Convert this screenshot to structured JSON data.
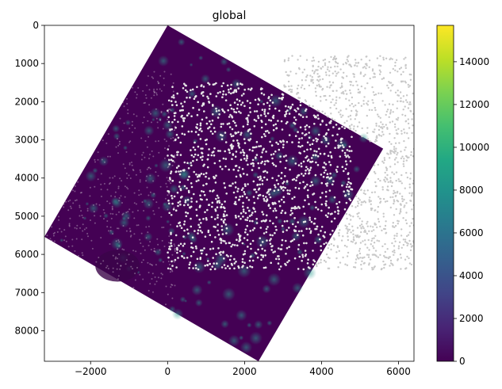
{
  "chart_data": {
    "type": "heatmap",
    "title": "global",
    "xlabel": "",
    "ylabel": "",
    "xlim": [
      -3200,
      6400
    ],
    "ylim": [
      8800,
      0
    ],
    "y_inverted": true,
    "x_ticks": [
      -2000,
      0,
      2000,
      4000,
      6000
    ],
    "x_tick_labels": [
      "−2000",
      "0",
      "2000",
      "4000",
      "6000"
    ],
    "y_ticks": [
      0,
      1000,
      2000,
      3000,
      4000,
      5000,
      6000,
      7000,
      8000
    ],
    "y_tick_labels": [
      "0",
      "1000",
      "2000",
      "3000",
      "4000",
      "5000",
      "6000",
      "7000",
      "8000"
    ],
    "image_corners": [
      [
        0,
        0
      ],
      [
        5600,
        3230
      ],
      [
        2360,
        8800
      ],
      [
        -3200,
        5540
      ]
    ],
    "white_points_region": {
      "x": [
        0,
        4800
      ],
      "y": [
        1500,
        6400
      ]
    },
    "gray_points_region": {
      "x": [
        3000,
        6400
      ],
      "y": [
        800,
        6400
      ]
    },
    "colorbar": {
      "colormap": "viridis",
      "range": [
        0,
        15700
      ],
      "ticks": [
        0,
        2000,
        4000,
        6000,
        8000,
        10000,
        12000,
        14000
      ],
      "tick_labels": [
        "0",
        "2000",
        "4000",
        "6000",
        "8000",
        "10000",
        "12000",
        "14000"
      ]
    },
    "grid": false,
    "colors": {
      "background": "#440154",
      "white_points": "#e8e8e8",
      "gray_points": "#c8c8c8"
    }
  }
}
